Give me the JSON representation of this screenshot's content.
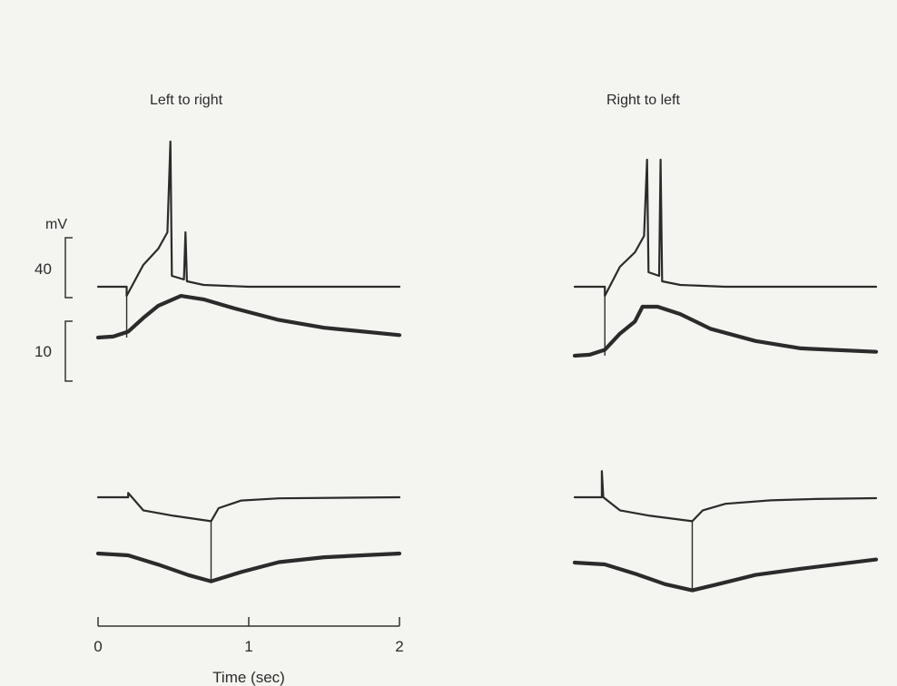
{
  "chart_data": {
    "type": "line",
    "panels": [
      {
        "name": "Left to right"
      },
      {
        "name": "Right to left"
      }
    ],
    "x_axis": {
      "label": "Time (sec)",
      "ticks": [
        0,
        1,
        2
      ],
      "tick_labels": [
        "0",
        "1",
        "2"
      ],
      "range": [
        0,
        2
      ]
    },
    "scale_bars": {
      "unit": "mV",
      "values": [
        "40",
        "10"
      ]
    },
    "traces": {
      "left_excitatory_thin": [
        [
          0,
          0
        ],
        [
          0.19,
          0
        ],
        [
          0.19,
          -5
        ],
        [
          0.3,
          12
        ],
        [
          0.4,
          21
        ],
        [
          0.46,
          30
        ],
        [
          0.48,
          80
        ],
        [
          0.49,
          6
        ],
        [
          0.57,
          4
        ],
        [
          0.58,
          30
        ],
        [
          0.59,
          3
        ],
        [
          0.7,
          1
        ],
        [
          1.0,
          0
        ],
        [
          2.0,
          0
        ]
      ],
      "left_excitatory_thick": [
        [
          0,
          0
        ],
        [
          0.1,
          0.2
        ],
        [
          0.2,
          1.2
        ],
        [
          0.3,
          4
        ],
        [
          0.4,
          6.5
        ],
        [
          0.55,
          8.5
        ],
        [
          0.7,
          7.8
        ],
        [
          0.9,
          6
        ],
        [
          1.2,
          3.6
        ],
        [
          1.5,
          2
        ],
        [
          2.0,
          0.5
        ]
      ],
      "right_excitatory_thin": [
        [
          0,
          0
        ],
        [
          0.2,
          0
        ],
        [
          0.2,
          -5
        ],
        [
          0.3,
          11
        ],
        [
          0.4,
          19
        ],
        [
          0.46,
          28
        ],
        [
          0.48,
          70
        ],
        [
          0.49,
          8
        ],
        [
          0.56,
          6
        ],
        [
          0.57,
          70
        ],
        [
          0.58,
          3
        ],
        [
          0.7,
          1
        ],
        [
          1.0,
          0
        ],
        [
          2.0,
          0
        ]
      ],
      "right_excitatory_thick": [
        [
          0,
          0
        ],
        [
          0.1,
          0.2
        ],
        [
          0.2,
          1.2
        ],
        [
          0.3,
          4.5
        ],
        [
          0.4,
          7
        ],
        [
          0.45,
          10
        ],
        [
          0.55,
          10
        ],
        [
          0.7,
          8.5
        ],
        [
          0.9,
          5.5
        ],
        [
          1.2,
          3
        ],
        [
          1.5,
          1.5
        ],
        [
          2.0,
          0.8
        ]
      ],
      "left_inhibitory_thin": [
        [
          0,
          0
        ],
        [
          0.2,
          0
        ],
        [
          0.2,
          2
        ],
        [
          0.3,
          -6
        ],
        [
          0.5,
          -8.5
        ],
        [
          0.75,
          -11
        ],
        [
          0.8,
          -5
        ],
        [
          0.95,
          -1.5
        ],
        [
          1.2,
          -0.5
        ],
        [
          2.0,
          0
        ]
      ],
      "left_inhibitory_thick": [
        [
          0,
          0
        ],
        [
          0.2,
          -0.3
        ],
        [
          0.4,
          -1.8
        ],
        [
          0.6,
          -3.5
        ],
        [
          0.75,
          -4.5
        ],
        [
          0.95,
          -3
        ],
        [
          1.2,
          -1.4
        ],
        [
          1.5,
          -0.6
        ],
        [
          2.0,
          0
        ]
      ],
      "right_inhibitory_thin": [
        [
          0,
          0
        ],
        [
          0.18,
          0
        ],
        [
          0.18,
          12
        ],
        [
          0.19,
          0
        ],
        [
          0.3,
          -6
        ],
        [
          0.5,
          -8.5
        ],
        [
          0.78,
          -11
        ],
        [
          0.85,
          -6
        ],
        [
          1.0,
          -3
        ],
        [
          1.3,
          -1.4
        ],
        [
          1.6,
          -0.8
        ],
        [
          2.0,
          -0.4
        ]
      ],
      "right_inhibitory_thick": [
        [
          0,
          0
        ],
        [
          0.2,
          -0.3
        ],
        [
          0.4,
          -1.8
        ],
        [
          0.6,
          -3.5
        ],
        [
          0.78,
          -4.5
        ],
        [
          0.95,
          -3.5
        ],
        [
          1.2,
          -2
        ],
        [
          1.5,
          -1
        ],
        [
          2.0,
          0.5
        ]
      ]
    }
  }
}
